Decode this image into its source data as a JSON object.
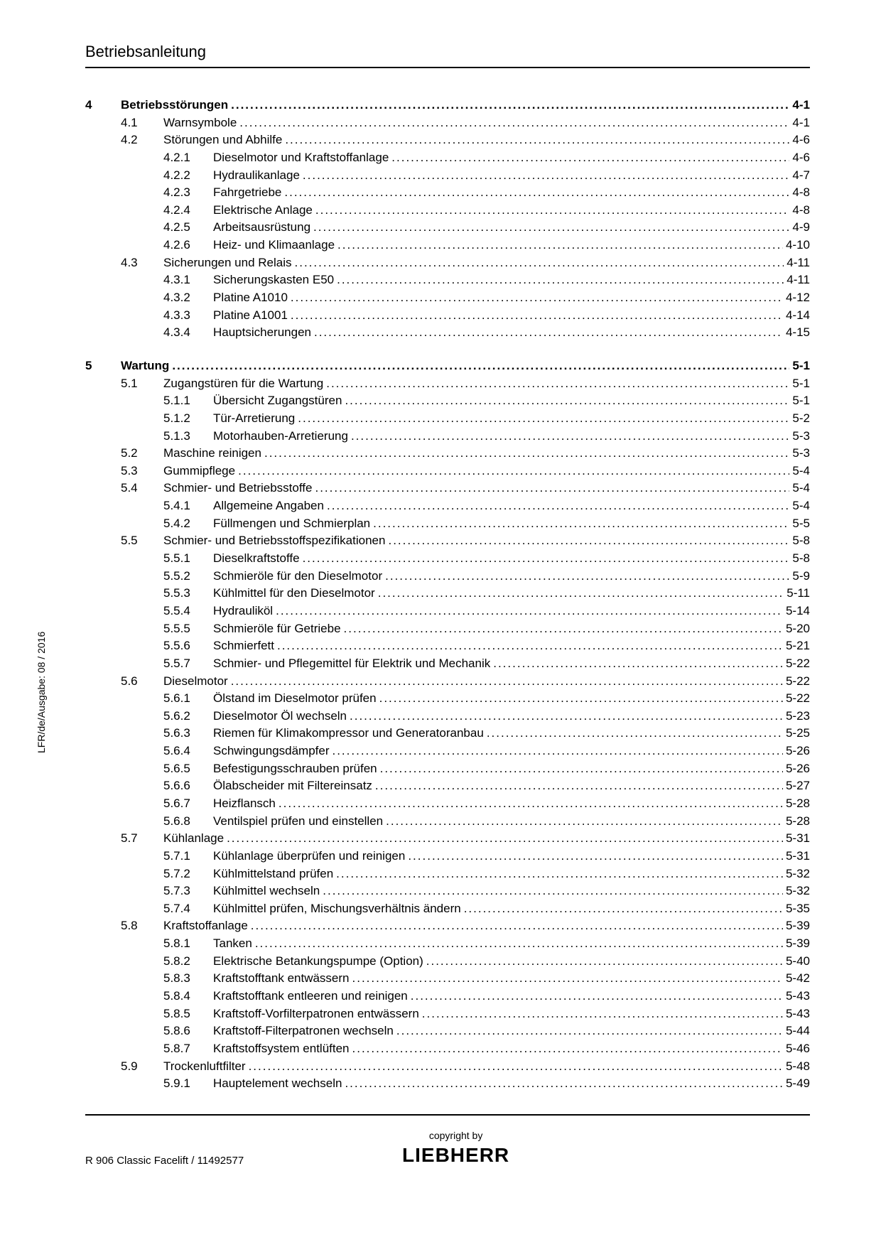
{
  "header": "Betriebsanleitung",
  "sidetext": "LFR/de/Ausgabe: 08 / 2016",
  "footer_left": "R 906 Classic Facelift / 11492577",
  "copyright": "copyright by",
  "brand": "LIEBHERR",
  "toc": [
    {
      "level": 1,
      "num": "4",
      "title": "Betriebsstörungen",
      "page": "4-1"
    },
    {
      "level": 2,
      "num": "4.1",
      "title": "Warnsymbole",
      "page": "4-1"
    },
    {
      "level": 2,
      "num": "4.2",
      "title": "Störungen und Abhilfe",
      "page": "4-6"
    },
    {
      "level": 3,
      "num": "4.2.1",
      "title": "Dieselmotor und Kraftstoffanlage",
      "page": "4-6"
    },
    {
      "level": 3,
      "num": "4.2.2",
      "title": "Hydraulikanlage",
      "page": "4-7"
    },
    {
      "level": 3,
      "num": "4.2.3",
      "title": "Fahrgetriebe",
      "page": "4-8"
    },
    {
      "level": 3,
      "num": "4.2.4",
      "title": "Elektrische Anlage",
      "page": "4-8"
    },
    {
      "level": 3,
      "num": "4.2.5",
      "title": "Arbeitsausrüstung",
      "page": "4-9"
    },
    {
      "level": 3,
      "num": "4.2.6",
      "title": "Heiz- und Klimaanlage",
      "page": "4-10"
    },
    {
      "level": 2,
      "num": "4.3",
      "title": "Sicherungen und Relais",
      "page": "4-11"
    },
    {
      "level": 3,
      "num": "4.3.1",
      "title": "Sicherungskasten E50",
      "page": "4-11"
    },
    {
      "level": 3,
      "num": "4.3.2",
      "title": "Platine A1010",
      "page": "4-12"
    },
    {
      "level": 3,
      "num": "4.3.3",
      "title": "Platine A1001",
      "page": "4-14"
    },
    {
      "level": 3,
      "num": "4.3.4",
      "title": "Hauptsicherungen",
      "page": "4-15"
    },
    {
      "level": 0,
      "gap": true
    },
    {
      "level": 1,
      "num": "5",
      "title": "Wartung",
      "page": "5-1"
    },
    {
      "level": 2,
      "num": "5.1",
      "title": "Zugangstüren für die Wartung",
      "page": "5-1"
    },
    {
      "level": 3,
      "num": "5.1.1",
      "title": "Übersicht Zugangstüren",
      "page": "5-1"
    },
    {
      "level": 3,
      "num": "5.1.2",
      "title": "Tür-Arretierung",
      "page": "5-2"
    },
    {
      "level": 3,
      "num": "5.1.3",
      "title": "Motorhauben-Arretierung",
      "page": "5-3"
    },
    {
      "level": 2,
      "num": "5.2",
      "title": "Maschine reinigen",
      "page": "5-3"
    },
    {
      "level": 2,
      "num": "5.3",
      "title": "Gummipflege",
      "page": "5-4"
    },
    {
      "level": 2,
      "num": "5.4",
      "title": "Schmier- und Betriebsstoffe",
      "page": "5-4"
    },
    {
      "level": 3,
      "num": "5.4.1",
      "title": "Allgemeine Angaben",
      "page": "5-4"
    },
    {
      "level": 3,
      "num": "5.4.2",
      "title": "Füllmengen und Schmierplan",
      "page": "5-5"
    },
    {
      "level": 2,
      "num": "5.5",
      "title": "Schmier- und Betriebsstoffspezifikationen",
      "page": "5-8"
    },
    {
      "level": 3,
      "num": "5.5.1",
      "title": "Dieselkraftstoffe",
      "page": "5-8"
    },
    {
      "level": 3,
      "num": "5.5.2",
      "title": "Schmieröle für den Dieselmotor",
      "page": "5-9"
    },
    {
      "level": 3,
      "num": "5.5.3",
      "title": "Kühlmittel für den Dieselmotor",
      "page": "5-11"
    },
    {
      "level": 3,
      "num": "5.5.4",
      "title": "Hydrauliköl",
      "page": "5-14"
    },
    {
      "level": 3,
      "num": "5.5.5",
      "title": "Schmieröle für Getriebe",
      "page": "5-20"
    },
    {
      "level": 3,
      "num": "5.5.6",
      "title": "Schmierfett",
      "page": "5-21"
    },
    {
      "level": 3,
      "num": "5.5.7",
      "title": "Schmier- und Pflegemittel für Elektrik und Mechanik",
      "page": "5-22"
    },
    {
      "level": 2,
      "num": "5.6",
      "title": "Dieselmotor",
      "page": "5-22"
    },
    {
      "level": 3,
      "num": "5.6.1",
      "title": "Ölstand im Dieselmotor prüfen",
      "page": "5-22"
    },
    {
      "level": 3,
      "num": "5.6.2",
      "title": "Dieselmotor Öl wechseln",
      "page": "5-23"
    },
    {
      "level": 3,
      "num": "5.6.3",
      "title": "Riemen für Klimakompressor und Generatoranbau",
      "page": "5-25"
    },
    {
      "level": 3,
      "num": "5.6.4",
      "title": "Schwingungsdämpfer",
      "page": "5-26"
    },
    {
      "level": 3,
      "num": "5.6.5",
      "title": "Befestigungsschrauben prüfen",
      "page": "5-26"
    },
    {
      "level": 3,
      "num": "5.6.6",
      "title": "Ölabscheider mit Filtereinsatz",
      "page": "5-27"
    },
    {
      "level": 3,
      "num": "5.6.7",
      "title": "Heizflansch",
      "page": "5-28"
    },
    {
      "level": 3,
      "num": "5.6.8",
      "title": "Ventilspiel prüfen und einstellen",
      "page": "5-28"
    },
    {
      "level": 2,
      "num": "5.7",
      "title": "Kühlanlage",
      "page": "5-31"
    },
    {
      "level": 3,
      "num": "5.7.1",
      "title": "Kühlanlage überprüfen und reinigen",
      "page": "5-31"
    },
    {
      "level": 3,
      "num": "5.7.2",
      "title": "Kühlmittelstand prüfen",
      "page": "5-32"
    },
    {
      "level": 3,
      "num": "5.7.3",
      "title": "Kühlmittel wechseln",
      "page": "5-32"
    },
    {
      "level": 3,
      "num": "5.7.4",
      "title": "Kühlmittel prüfen, Mischungsverhältnis ändern",
      "page": "5-35"
    },
    {
      "level": 2,
      "num": "5.8",
      "title": "Kraftstoffanlage",
      "page": "5-39"
    },
    {
      "level": 3,
      "num": "5.8.1",
      "title": "Tanken",
      "page": "5-39"
    },
    {
      "level": 3,
      "num": "5.8.2",
      "title": "Elektrische Betankungspumpe (Option)",
      "page": "5-40"
    },
    {
      "level": 3,
      "num": "5.8.3",
      "title": "Kraftstofftank entwässern",
      "page": "5-42"
    },
    {
      "level": 3,
      "num": "5.8.4",
      "title": "Kraftstofftank entleeren und reinigen",
      "page": "5-43"
    },
    {
      "level": 3,
      "num": "5.8.5",
      "title": "Kraftstoff-Vorfilterpatronen entwässern",
      "page": "5-43"
    },
    {
      "level": 3,
      "num": "5.8.6",
      "title": "Kraftstoff-Filterpatronen wechseln",
      "page": "5-44"
    },
    {
      "level": 3,
      "num": "5.8.7",
      "title": "Kraftstoffsystem entlüften",
      "page": "5-46"
    },
    {
      "level": 2,
      "num": "5.9",
      "title": "Trockenluftfilter",
      "page": "5-48"
    },
    {
      "level": 3,
      "num": "5.9.1",
      "title": "Hauptelement wechseln",
      "page": "5-49"
    }
  ]
}
